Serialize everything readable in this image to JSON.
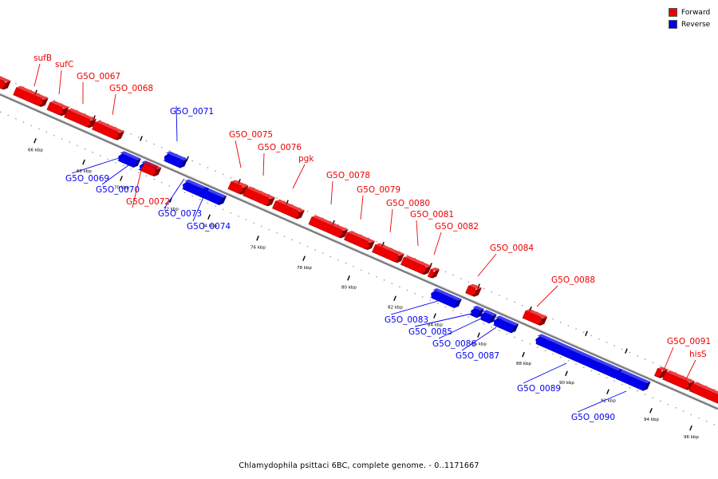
{
  "legend": {
    "forward_label": "Forward",
    "reverse_label": "Reverse",
    "forward_color": "#ee0000",
    "reverse_color": "#0000ee"
  },
  "caption": "Chlamydophila psittaci 6BC, complete genome. - 0..1171667",
  "axis": {
    "unit": "kbp",
    "ticks": [
      "66 kbp",
      "68 kbp",
      "70 kbp",
      "72 kbp",
      "74 kbp",
      "76 kbp",
      "78 kbp",
      "80 kbp",
      "82 kbp",
      "84 kbp",
      "86 kbp",
      "88 kbp",
      "90 kbp",
      "92 kbp",
      "94 kbp",
      "96 kbp"
    ]
  },
  "genes": [
    {
      "label": "",
      "strand": "forward"
    },
    {
      "label": "sufB",
      "strand": "forward"
    },
    {
      "label": "sufC",
      "strand": "forward"
    },
    {
      "label": "G5O_0067",
      "strand": "forward"
    },
    {
      "label": "G5O_0068",
      "strand": "forward"
    },
    {
      "label": "G5O_0069",
      "strand": "reverse"
    },
    {
      "label": "G5O_0070",
      "strand": "reverse"
    },
    {
      "label": "G5O_0071",
      "strand": "reverse"
    },
    {
      "label": "G5O_0072",
      "strand": "forward"
    },
    {
      "label": "G5O_0073",
      "strand": "reverse"
    },
    {
      "label": "G5O_0074",
      "strand": "reverse"
    },
    {
      "label": "G5O_0075",
      "strand": "forward"
    },
    {
      "label": "G5O_0076",
      "strand": "forward"
    },
    {
      "label": "pgk",
      "strand": "forward"
    },
    {
      "label": "G5O_0078",
      "strand": "forward"
    },
    {
      "label": "G5O_0079",
      "strand": "forward"
    },
    {
      "label": "G5O_0080",
      "strand": "forward"
    },
    {
      "label": "G5O_0081",
      "strand": "forward"
    },
    {
      "label": "G5O_0082",
      "strand": "forward"
    },
    {
      "label": "G5O_0083",
      "strand": "reverse"
    },
    {
      "label": "G5O_0084",
      "strand": "forward"
    },
    {
      "label": "G5O_0085",
      "strand": "reverse"
    },
    {
      "label": "G5O_0086",
      "strand": "reverse"
    },
    {
      "label": "G5O_0087",
      "strand": "reverse"
    },
    {
      "label": "G5O_0088",
      "strand": "forward"
    },
    {
      "label": "G5O_0089",
      "strand": "reverse"
    },
    {
      "label": "G5O_0090",
      "strand": "reverse"
    },
    {
      "label": "G5O_0091",
      "strand": "forward"
    },
    {
      "label": "hisS",
      "strand": "forward"
    },
    {
      "label": "",
      "strand": "forward"
    }
  ]
}
